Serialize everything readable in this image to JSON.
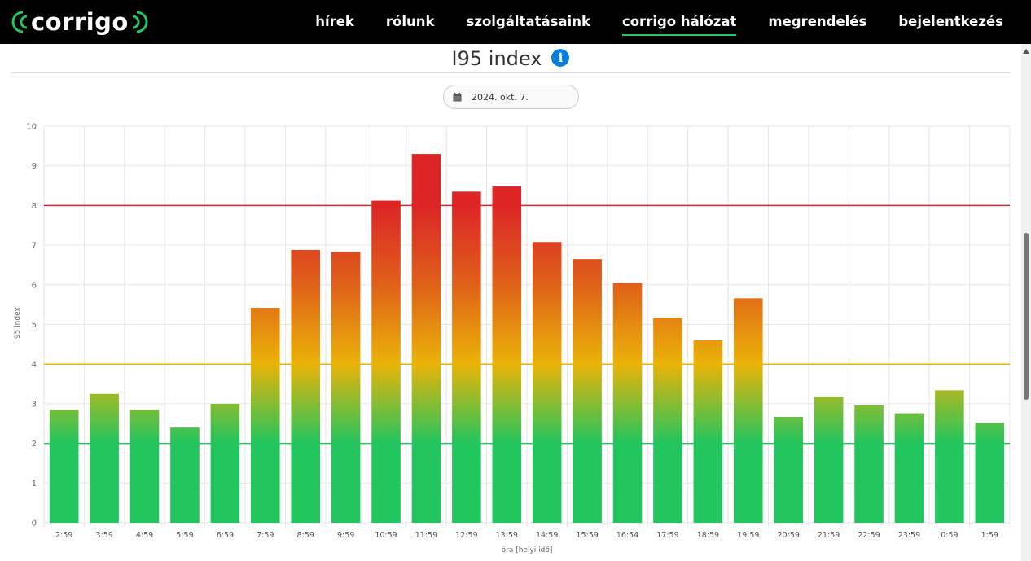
{
  "brand": {
    "logo_text": "corrigo"
  },
  "nav": {
    "items": [
      {
        "label": "hírek",
        "active": false
      },
      {
        "label": "rólunk",
        "active": false
      },
      {
        "label": "szolgáltatásaink",
        "active": false
      },
      {
        "label": "corrigo hálózat",
        "active": true
      },
      {
        "label": "megrendelés",
        "active": false
      },
      {
        "label": "bejelentkezés",
        "active": false
      }
    ]
  },
  "page": {
    "title": "I95 index",
    "date": "2024. okt. 7."
  },
  "colors": {
    "green": "#22c55e",
    "yellow": "#eab308",
    "red": "#dc2626",
    "accent": "#0b7dda"
  },
  "chart_data": {
    "type": "bar",
    "title": "",
    "xlabel": "óra [helyi idő]",
    "ylabel": "I95 index",
    "ylim": [
      0,
      10
    ],
    "yticks": [
      0,
      1,
      2,
      3,
      4,
      5,
      6,
      7,
      8,
      9,
      10
    ],
    "categories": [
      "2:59",
      "3:59",
      "4:59",
      "5:59",
      "6:59",
      "7:59",
      "8:59",
      "9:59",
      "10:59",
      "11:59",
      "12:59",
      "13:59",
      "14:59",
      "15:59",
      "16:54",
      "17:59",
      "18:59",
      "19:59",
      "20:59",
      "21:59",
      "22:59",
      "23:59",
      "0:59",
      "1:59"
    ],
    "values": [
      2.85,
      3.25,
      2.85,
      2.4,
      3.0,
      5.42,
      6.88,
      6.83,
      8.12,
      9.3,
      8.35,
      8.48,
      7.08,
      6.65,
      6.05,
      5.17,
      4.6,
      5.66,
      2.67,
      3.18,
      2.96,
      2.76,
      3.34,
      2.52
    ],
    "threshold_lines": [
      {
        "value": 2,
        "color": "#22c55e"
      },
      {
        "value": 4,
        "color": "#eab308"
      },
      {
        "value": 8,
        "color": "#dc2626"
      }
    ],
    "grid": true
  }
}
